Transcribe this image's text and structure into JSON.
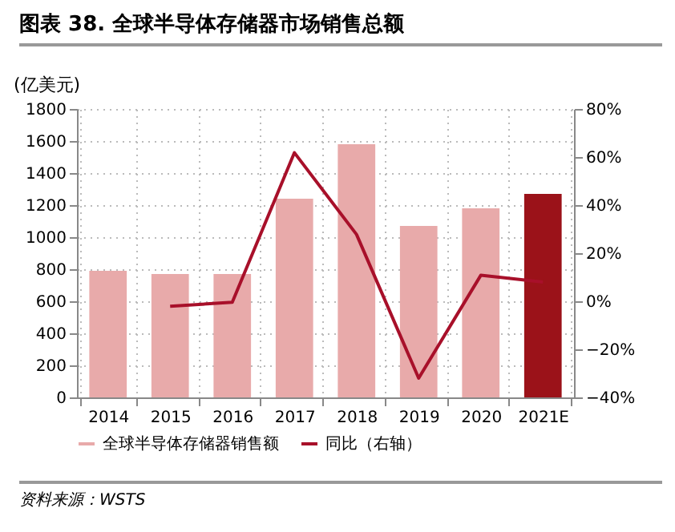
{
  "chart_data": {
    "type": "bar",
    "title": "图表 38. 全球半导体存储器市场销售总额",
    "ylabel": "(亿美元)",
    "annotations": [
      "资料来源：WSTS"
    ],
    "categories": [
      "2014",
      "2015",
      "2016",
      "2017",
      "2018",
      "2019",
      "2020",
      "2021E"
    ],
    "series": [
      {
        "name": "全球半导体存储器销售额",
        "color": "#e8aaaa",
        "colors": [
          "#e8aaaa",
          "#e8aaaa",
          "#e8aaaa",
          "#e8aaaa",
          "#e8aaaa",
          "#e8aaaa",
          "#e8aaaa",
          "#9b1219"
        ],
        "values": [
          790,
          770,
          770,
          1240,
          1580,
          1070,
          1180,
          1270
        ]
      },
      {
        "name": "同比（右轴）",
        "type": "line",
        "axis": "y2",
        "color": "#a8102a",
        "values": [
          null,
          -2.1,
          -0.4,
          61.8,
          27.8,
          -32,
          10.8,
          8
        ]
      }
    ],
    "ylim": [
      0,
      1800
    ],
    "yticks": [
      0,
      200,
      400,
      600,
      800,
      1000,
      1200,
      1400,
      1600,
      1800
    ],
    "y2lim": [
      -40,
      80
    ],
    "y2ticks": [
      {
        "value": -40,
        "label": "−40%"
      },
      {
        "value": -20,
        "label": "−20%"
      },
      {
        "value": 0,
        "label": "0%"
      },
      {
        "value": 20,
        "label": "20%"
      },
      {
        "value": 40,
        "label": "40%"
      },
      {
        "value": 60,
        "label": "60%"
      },
      {
        "value": 80,
        "label": "80%"
      }
    ],
    "grid": true,
    "legend": "bottom"
  }
}
